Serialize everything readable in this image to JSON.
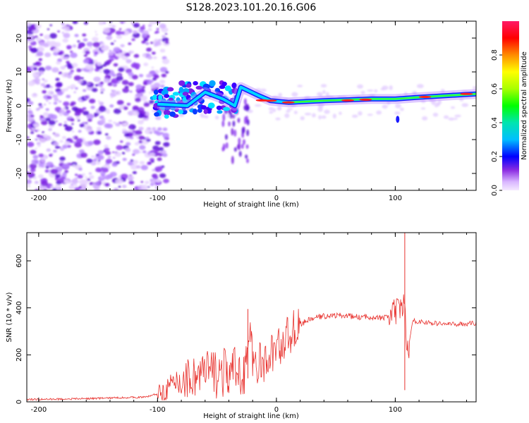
{
  "title": "S128.2023.101.20.16.G06",
  "chart_data": [
    {
      "type": "heatmap",
      "xlabel": "Height of straight line (km)",
      "ylabel": "Frequency (Hz)",
      "xlim": [
        -210,
        168
      ],
      "ylim": [
        -25,
        25
      ],
      "xticks": [
        -200,
        -100,
        0,
        100
      ],
      "yticks": [
        -20,
        -10,
        0,
        10,
        20
      ],
      "colorbar": {
        "label": "Normalized spectral amplitude",
        "range": [
          0.0,
          1.0
        ],
        "ticks": [
          "0.0",
          "0.2",
          "0.4",
          "0.6",
          "0.8"
        ],
        "tick_values": [
          0.0,
          0.2,
          0.4,
          0.6,
          0.8
        ]
      },
      "ridge": [
        {
          "x": -100,
          "y": 0.5
        },
        {
          "x": -75,
          "y": 0
        },
        {
          "x": -60,
          "y": 4
        },
        {
          "x": -45,
          "y": 2
        },
        {
          "x": -35,
          "y": 0
        },
        {
          "x": -30,
          "y": 5.5
        },
        {
          "x": -15,
          "y": 3
        },
        {
          "x": -5,
          "y": 1.5
        },
        {
          "x": 10,
          "y": 1
        },
        {
          "x": 40,
          "y": 1.5
        },
        {
          "x": 80,
          "y": 2
        },
        {
          "x": 100,
          "y": 2
        },
        {
          "x": 120,
          "y": 2.5
        },
        {
          "x": 168,
          "y": 3.5
        }
      ]
    },
    {
      "type": "line",
      "xlabel": "Height of straight line (km)",
      "ylabel": "SNR (10 * v/v)",
      "xlim": [
        -210,
        168
      ],
      "ylim": [
        0,
        720
      ],
      "xticks": [
        -200,
        -100,
        0,
        100
      ],
      "yticks": [
        0,
        200,
        400,
        600
      ],
      "color": "#e8322e",
      "series": [
        {
          "x": [
            -210,
            -180,
            -150,
            -130,
            -110,
            -100,
            -90,
            -80,
            -70,
            -60,
            -50,
            -40,
            -30,
            -25,
            -22,
            -20,
            -15,
            -10,
            -5,
            0,
            5,
            10,
            15,
            20,
            30,
            40,
            50,
            60,
            70,
            80,
            90,
            100,
            105,
            108,
            110,
            115,
            130,
            150,
            168
          ],
          "y": [
            10,
            12,
            15,
            18,
            20,
            35,
            60,
            90,
            110,
            120,
            125,
            120,
            130,
            170,
            300,
            160,
            170,
            150,
            200,
            230,
            250,
            280,
            310,
            330,
            355,
            365,
            368,
            366,
            360,
            362,
            355,
            380,
            390,
            420,
            200,
            345,
            335,
            330,
            335
          ]
        }
      ],
      "spikes": [
        {
          "x": -24,
          "top": 395,
          "bottom": 100
        },
        {
          "x": 108,
          "top": 725,
          "bottom": 50
        }
      ]
    }
  ]
}
